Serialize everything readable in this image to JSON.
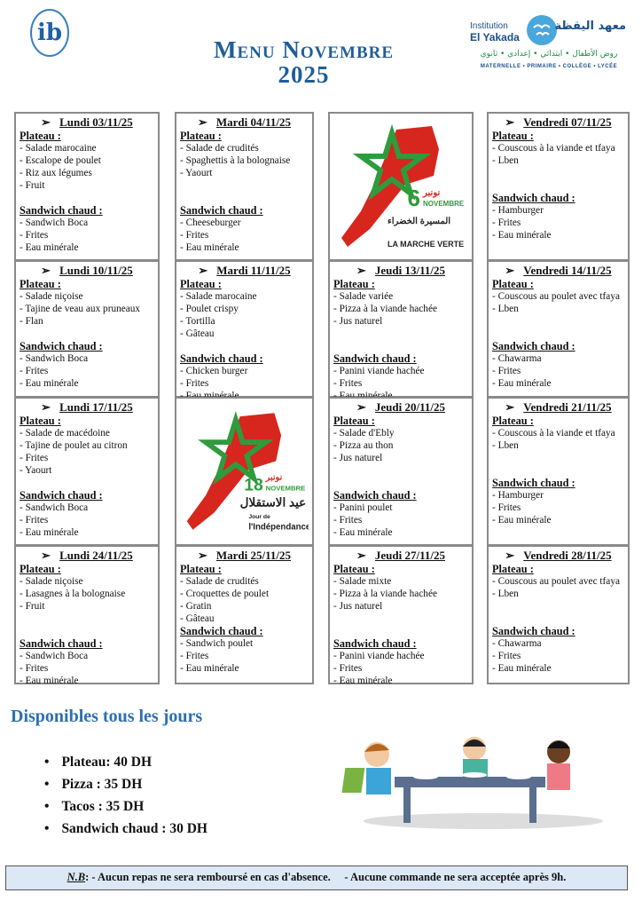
{
  "header": {
    "title_line1": "Menu Novembre",
    "title_line2": "2025",
    "left_logo": "ib",
    "institution": {
      "fr_line1": "Institution",
      "fr_line2": "El Yakada",
      "ar_name": "معهد اليقظة",
      "ar_levels": "روض الأطفال • ابتدائي • إعدادي • ثانوي",
      "levels": "MATERNELLE • PRIMAIRE • COLLÈGE • LYCÉE"
    }
  },
  "labels": {
    "plateau": "Plateau :",
    "sandwich": "Sandwich chaud :"
  },
  "cells": [
    {
      "type": "menu",
      "day": "Lundi 03/11/25",
      "plateau": [
        "- Salade marocaine",
        "- Escalope de poulet",
        "- Riz aux légumes",
        "- Fruit"
      ],
      "sandwich": [
        "- Sandwich Boca",
        "- Frites",
        "- Eau minérale"
      ]
    },
    {
      "type": "menu",
      "day": "Mardi 04/11/25",
      "plateau": [
        "- Salade de crudités",
        "- Spaghettis à la bolognaise",
        "- Yaourt"
      ],
      "sandwich": [
        "- Cheeseburger",
        "- Frites",
        "- Eau minérale"
      ]
    },
    {
      "type": "image",
      "number": "6",
      "ar_month": "نونبر",
      "month": "NOVEMBRE",
      "ar_caption": "المسيرة الخضراء",
      "caption": "LA MARCHE VERTE"
    },
    {
      "type": "menu",
      "day": "Vendredi 07/11/25",
      "plateau": [
        "-  Couscous à la viande et tfaya",
        "-  Lben"
      ],
      "sandwich": [
        "- Hamburger",
        "- Frites",
        "- Eau minérale"
      ]
    },
    {
      "type": "menu",
      "day": "Lundi 10/11/25",
      "plateau": [
        "- Salade niçoise",
        "- Tajine de veau aux pruneaux",
        "- Flan"
      ],
      "sandwich": [
        "- Sandwich Boca",
        "- Frites",
        "- Eau minérale"
      ]
    },
    {
      "type": "menu",
      "day": "Mardi 11/11/25",
      "plateau": [
        "- Salade marocaine",
        "- Poulet crispy",
        "- Tortilla",
        "- Gâteau"
      ],
      "sandwich": [
        "- Chicken burger",
        "- Frites",
        "- Eau minérale"
      ]
    },
    {
      "type": "menu",
      "day": "Jeudi 13/11/25",
      "plateau": [
        "- Salade variée",
        "- Pizza à la viande hachée",
        "- Jus naturel"
      ],
      "sandwich": [
        "- Panini viande hachée",
        "- Frites",
        "- Eau minérale"
      ]
    },
    {
      "type": "menu",
      "day": "Vendredi 14/11/25",
      "plateau": [
        "-  Couscous au poulet avec tfaya",
        "-  Lben"
      ],
      "sandwich": [
        "- Chawarma",
        "- Frites",
        "- Eau minérale"
      ]
    },
    {
      "type": "menu",
      "day": "Lundi 17/11/25",
      "plateau": [
        "- Salade de macédoine",
        "- Tajine de poulet au citron",
        "- Frites",
        "- Yaourt"
      ],
      "sandwich": [
        "- Sandwich Boca",
        "- Frites",
        "- Eau minérale"
      ]
    },
    {
      "type": "image",
      "number": "18",
      "ar_month": "نونبر",
      "month": "NOVEMBRE",
      "ar_caption": "عيد الاستقلال",
      "caption_small": "Jour de",
      "caption": "l'Indépendance"
    },
    {
      "type": "menu",
      "day": "Jeudi 20/11/25",
      "plateau": [
        "- Salade d'Ebly",
        "- Pizza au thon",
        "- Jus naturel"
      ],
      "sandwich": [
        "- Panini poulet",
        "- Frites",
        "- Eau minérale"
      ]
    },
    {
      "type": "menu",
      "day": "Vendredi 21/11/25",
      "plateau": [
        "-  Couscous à la viande et tfaya",
        "-  Lben"
      ],
      "sandwich": [
        "- Hamburger",
        "- Frites",
        "- Eau minérale"
      ]
    },
    {
      "type": "menu",
      "day": "Lundi 24/11/25",
      "plateau": [
        "-  Salade niçoise",
        "-  Lasagnes à la bolognaise",
        "-  Fruit"
      ],
      "sandwich": [
        "- Sandwich Boca",
        "- Frites",
        "- Eau minérale"
      ]
    },
    {
      "type": "menu",
      "day": "Mardi 25/11/25",
      "plateau": [
        "- Salade de crudités",
        "- Croquettes de poulet",
        "- Gratin",
        "- Gâteau"
      ],
      "sandwich": [
        "- Sandwich poulet",
        "- Frites",
        "- Eau minérale"
      ],
      "tight": true
    },
    {
      "type": "menu",
      "day": "Jeudi 27/11/25",
      "plateau": [
        "- Salade mixte",
        "- Pizza à la viande hachée",
        "- Jus naturel"
      ],
      "sandwich": [
        "- Panini viande hachée",
        "- Frites",
        "- Eau minérale"
      ]
    },
    {
      "type": "menu",
      "day": "Vendredi 28/11/25",
      "plateau": [
        "-  Couscous au poulet avec tfaya",
        "-  Lben"
      ],
      "sandwich": [
        "- Chawarma",
        "- Frites",
        "- Eau minérale"
      ]
    }
  ],
  "daily": {
    "title": "Disponibles tous les jours",
    "items": [
      "Plateau: 40 DH",
      "Pizza : 35 DH",
      "Tacos : 35 DH",
      "Sandwich chaud : 30 DH"
    ]
  },
  "note": {
    "label": "N.B",
    "text1": ": - Aucun repas ne sera remboursé en cas d'absence.",
    "text2": "- Aucune commande ne sera acceptée après 9h."
  },
  "colors": {
    "title": "#1f5e99",
    "accent": "#2e6fb0",
    "flag_red": "#d7261e",
    "flag_green": "#2e9b3c",
    "note_bg": "#dce8f5"
  }
}
